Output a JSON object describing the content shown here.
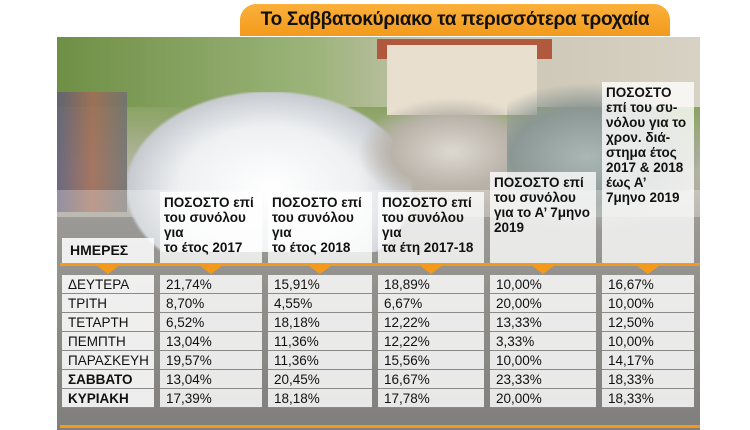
{
  "title": "Το Σαββατοκύριακο τα περισσότερα τροχαία",
  "colors": {
    "accent": "#f39a1c"
  },
  "table": {
    "days_header": "ΗΜΕΡΕΣ",
    "columns": [
      {
        "header": [
          "ΠΟΣΟΣΤΟ επί",
          "του συνόλου για",
          "το έτος 2017"
        ]
      },
      {
        "header": [
          "ΠΟΣΟΣΤΟ επί",
          "του συνόλου για",
          "το έτος 2018"
        ]
      },
      {
        "header": [
          "ΠΟΣΟΣΤΟ επί",
          "του συνόλου για",
          "τα έτη 2017-18"
        ]
      },
      {
        "header": [
          "ΠΟΣΟΣΤΟ επί",
          "του συνόλου",
          "για το Α’ 7μηνο",
          "2019"
        ]
      },
      {
        "header": [
          "ΠΟΣΟΣΤΟ",
          "επί του συ-",
          "νόλου για το",
          "χρον. διά-",
          "στημα έτος",
          "2017 & 2018",
          "έως Α’",
          "7μηνο 2019"
        ]
      }
    ],
    "rows": [
      {
        "day": "ΔΕΥΤΕΡΑ",
        "bold": false,
        "values": [
          "21,74%",
          "15,91%",
          "18,89%",
          "10,00%",
          "16,67%"
        ]
      },
      {
        "day": "ΤΡΙΤΗ",
        "bold": false,
        "values": [
          "8,70%",
          "4,55%",
          "6,67%",
          "20,00%",
          "10,00%"
        ]
      },
      {
        "day": "ΤΕΤΑΡΤΗ",
        "bold": false,
        "values": [
          "6,52%",
          "18,18%",
          "12,22%",
          "13,33%",
          "12,50%"
        ]
      },
      {
        "day": "ΠΕΜΠΤΗ",
        "bold": false,
        "values": [
          "13,04%",
          "11,36%",
          "12,22%",
          "3,33%",
          "10,00%"
        ]
      },
      {
        "day": "ΠΑΡΑΣΚΕΥΗ",
        "bold": false,
        "values": [
          "19,57%",
          "11,36%",
          "15,56%",
          "10,00%",
          "14,17%"
        ]
      },
      {
        "day": "ΣΑΒΒΑΤΟ",
        "bold": true,
        "values": [
          "13,04%",
          "20,45%",
          "16,67%",
          "23,33%",
          "18,33%"
        ]
      },
      {
        "day": "ΚΥΡΙΑΚΗ",
        "bold": true,
        "values": [
          "17,39%",
          "18,18%",
          "17,78%",
          "20,00%",
          "18,33%"
        ]
      }
    ]
  }
}
